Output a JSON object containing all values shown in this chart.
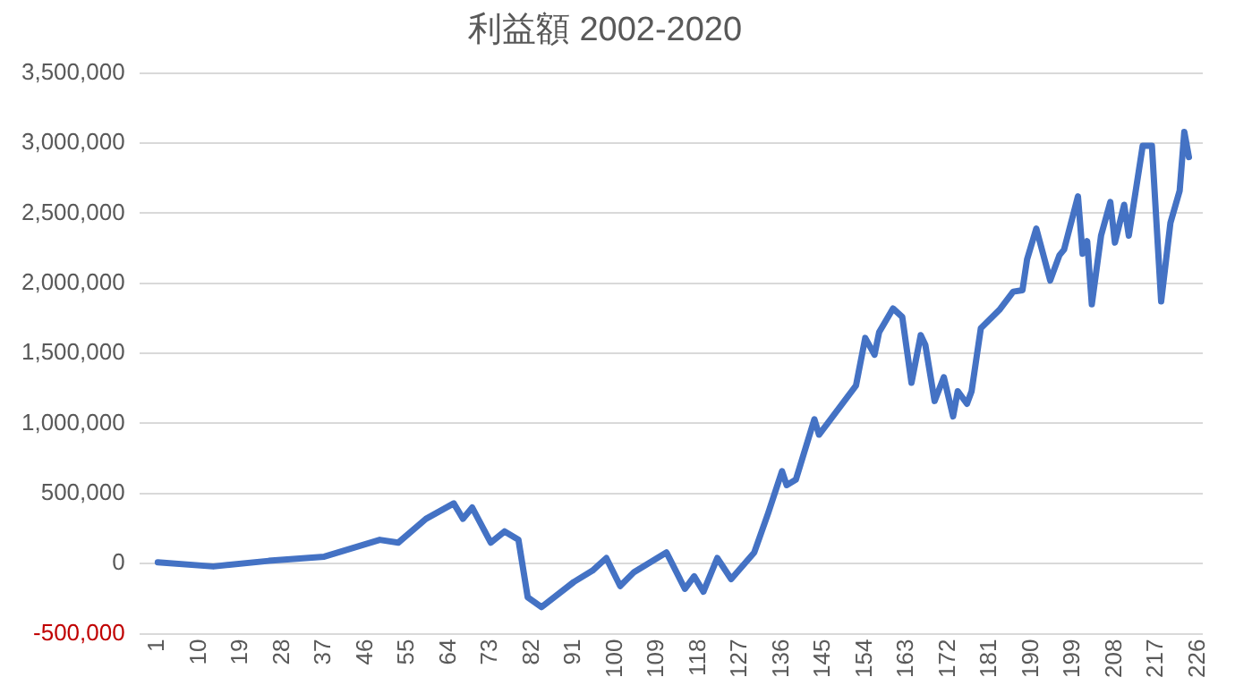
{
  "chart_data": {
    "type": "line",
    "title": "利益額 2002-2020",
    "x": [
      1,
      13,
      25,
      37,
      49,
      53,
      59,
      65,
      67,
      69,
      73,
      76,
      79,
      81,
      84,
      91,
      95,
      98,
      101,
      104,
      111,
      115,
      117,
      119,
      122,
      125,
      130,
      133,
      136,
      137,
      139,
      143,
      144,
      152,
      154,
      156,
      157,
      160,
      162,
      164,
      166,
      167,
      169,
      171,
      173,
      174,
      176,
      177,
      179,
      183,
      186,
      188,
      189,
      191,
      194,
      196,
      197,
      200,
      201,
      202,
      203,
      205,
      207,
      208,
      210,
      211,
      214,
      216,
      218,
      220,
      222,
      223,
      224
    ],
    "series": [
      {
        "color": "#4472c4",
        "values": [
          10000,
          -20000,
          20000,
          50000,
          170000,
          150000,
          320000,
          430000,
          320000,
          400000,
          150000,
          230000,
          170000,
          -240000,
          -310000,
          -130000,
          -50000,
          40000,
          -160000,
          -60000,
          80000,
          -180000,
          -90000,
          -200000,
          40000,
          -110000,
          80000,
          360000,
          660000,
          560000,
          600000,
          1030000,
          920000,
          1270000,
          1610000,
          1490000,
          1650000,
          1820000,
          1760000,
          1290000,
          1630000,
          1560000,
          1160000,
          1330000,
          1050000,
          1230000,
          1140000,
          1230000,
          1680000,
          1810000,
          1940000,
          1950000,
          2170000,
          2390000,
          2020000,
          2200000,
          2240000,
          2620000,
          2210000,
          2300000,
          1850000,
          2340000,
          2580000,
          2290000,
          2560000,
          2340000,
          2980000,
          2980000,
          1870000,
          2430000,
          2660000,
          3080000,
          2900000
        ]
      }
    ],
    "xlim": [
      -3,
      227
    ],
    "xticks": [
      1,
      10,
      19,
      28,
      37,
      46,
      55,
      64,
      73,
      82,
      91,
      100,
      109,
      118,
      127,
      136,
      145,
      154,
      163,
      172,
      181,
      190,
      199,
      208,
      217,
      226
    ],
    "ylim": [
      -500000,
      3500000
    ],
    "yticks": [
      {
        "value": -500000,
        "label": "-500,000"
      },
      0,
      {
        "value": 500000,
        "label": "500,000"
      },
      {
        "value": 1000000,
        "label": "1,000,000"
      },
      {
        "value": 1500000,
        "label": "1,500,000"
      },
      {
        "value": 2000000,
        "label": "2,000,000"
      },
      {
        "value": 2500000,
        "label": "2,500,000"
      },
      {
        "value": 3000000,
        "label": "3,000,000"
      },
      {
        "value": 3500000,
        "label": "3,500,000"
      }
    ],
    "grid": "y",
    "legend": false,
    "marker": "none",
    "line_style": "solid"
  }
}
